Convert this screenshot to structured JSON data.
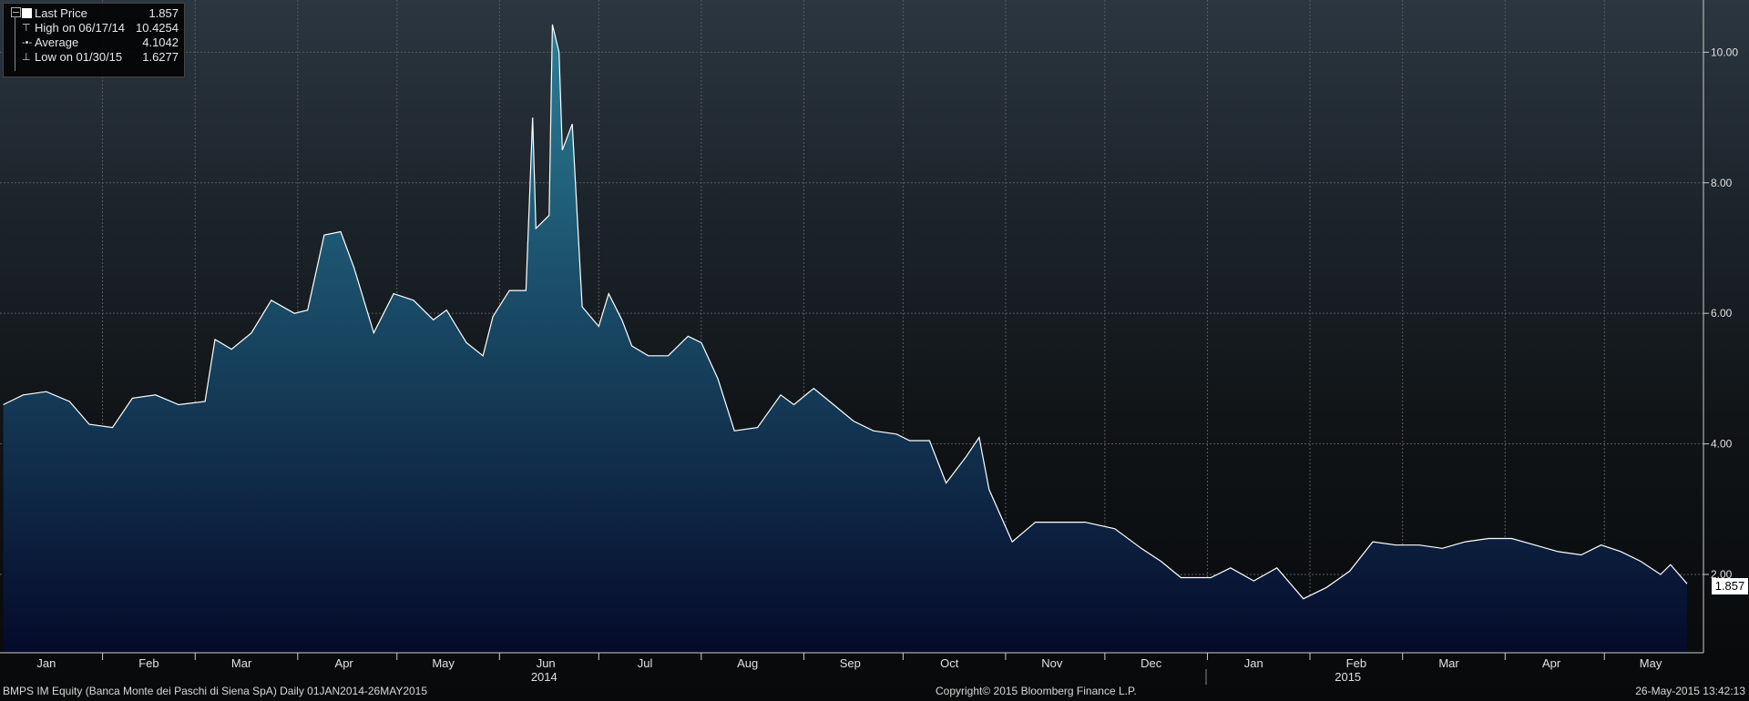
{
  "legend": {
    "last_price_label": "Last Price",
    "last_price_value": "1.857",
    "high_label": "High on 06/17/14",
    "high_value": "10.4254",
    "average_label": "Average",
    "average_value": "4.1042",
    "low_label": "Low on 01/30/15",
    "low_value": "1.6277"
  },
  "last_price_tag": "1.857",
  "footer": {
    "left": "BMPS IM Equity (Banca Monte dei Paschi di Siena SpA)  Daily 01JAN2014-26MAY2015",
    "center": "Copyright© 2015 Bloomberg Finance L.P.",
    "right": "26-May-2015 13:42:13"
  },
  "colors": {
    "line": "#ffffff",
    "fill_top": "#2a7f97",
    "fill_bottom": "#050a2a",
    "grid": "#5a5a5a"
  },
  "chart_data": {
    "type": "area",
    "title": "",
    "xlabel": "",
    "ylabel": "",
    "ylim": [
      0.8,
      10.8
    ],
    "y_ticks": [
      2,
      4,
      6,
      8,
      10
    ],
    "y_tick_labels": [
      "2.00",
      "4.00",
      "6.00",
      "8.00",
      "10.00"
    ],
    "x_range": [
      "2014-01-01",
      "2015-05-26"
    ],
    "x_ticks": [
      {
        "date": "2014-01-15",
        "label": "Jan"
      },
      {
        "date": "2014-02-15",
        "label": "Feb"
      },
      {
        "date": "2014-03-15",
        "label": "Mar"
      },
      {
        "date": "2014-04-15",
        "label": "Apr"
      },
      {
        "date": "2014-05-15",
        "label": "May"
      },
      {
        "date": "2014-06-15",
        "label": "Jun"
      },
      {
        "date": "2014-07-15",
        "label": "Jul"
      },
      {
        "date": "2014-08-15",
        "label": "Aug"
      },
      {
        "date": "2014-09-15",
        "label": "Sep"
      },
      {
        "date": "2014-10-15",
        "label": "Oct"
      },
      {
        "date": "2014-11-15",
        "label": "Nov"
      },
      {
        "date": "2014-12-15",
        "label": "Dec"
      },
      {
        "date": "2015-01-15",
        "label": "Jan"
      },
      {
        "date": "2015-02-15",
        "label": "Feb"
      },
      {
        "date": "2015-03-15",
        "label": "Mar"
      },
      {
        "date": "2015-04-15",
        "label": "Apr"
      },
      {
        "date": "2015-05-15",
        "label": "May"
      }
    ],
    "year_labels": [
      {
        "date": "2014-07-01",
        "label": "2014"
      },
      {
        "date": "2015-03-01",
        "label": "2015"
      }
    ],
    "grid": true,
    "legend_position": "top-left",
    "series": [
      {
        "name": "Last Price",
        "points": [
          [
            "2014-01-02",
            4.6
          ],
          [
            "2014-01-08",
            4.75
          ],
          [
            "2014-01-15",
            4.8
          ],
          [
            "2014-01-22",
            4.65
          ],
          [
            "2014-01-28",
            4.3
          ],
          [
            "2014-02-04",
            4.25
          ],
          [
            "2014-02-10",
            4.7
          ],
          [
            "2014-02-17",
            4.75
          ],
          [
            "2014-02-24",
            4.6
          ],
          [
            "2014-03-04",
            4.65
          ],
          [
            "2014-03-07",
            5.6
          ],
          [
            "2014-03-12",
            5.45
          ],
          [
            "2014-03-18",
            5.7
          ],
          [
            "2014-03-24",
            6.2
          ],
          [
            "2014-03-31",
            6.0
          ],
          [
            "2014-04-04",
            6.05
          ],
          [
            "2014-04-09",
            7.2
          ],
          [
            "2014-04-14",
            7.25
          ],
          [
            "2014-04-18",
            6.7
          ],
          [
            "2014-04-24",
            5.7
          ],
          [
            "2014-04-30",
            6.3
          ],
          [
            "2014-05-06",
            6.2
          ],
          [
            "2014-05-12",
            5.9
          ],
          [
            "2014-05-16",
            6.05
          ],
          [
            "2014-05-22",
            5.55
          ],
          [
            "2014-05-27",
            5.35
          ],
          [
            "2014-05-30",
            5.95
          ],
          [
            "2014-06-04",
            6.35
          ],
          [
            "2014-06-09",
            6.35
          ],
          [
            "2014-06-11",
            9.0
          ],
          [
            "2014-06-12",
            7.3
          ],
          [
            "2014-06-16",
            7.5
          ],
          [
            "2014-06-17",
            10.4254
          ],
          [
            "2014-06-19",
            10.0
          ],
          [
            "2014-06-20",
            8.5
          ],
          [
            "2014-06-23",
            8.9
          ],
          [
            "2014-06-26",
            6.1
          ],
          [
            "2014-07-01",
            5.8
          ],
          [
            "2014-07-04",
            6.3
          ],
          [
            "2014-07-08",
            5.9
          ],
          [
            "2014-07-11",
            5.5
          ],
          [
            "2014-07-16",
            5.35
          ],
          [
            "2014-07-22",
            5.35
          ],
          [
            "2014-07-28",
            5.65
          ],
          [
            "2014-08-01",
            5.55
          ],
          [
            "2014-08-06",
            5.0
          ],
          [
            "2014-08-11",
            4.2
          ],
          [
            "2014-08-18",
            4.25
          ],
          [
            "2014-08-25",
            4.75
          ],
          [
            "2014-08-29",
            4.6
          ],
          [
            "2014-09-04",
            4.85
          ],
          [
            "2014-09-10",
            4.6
          ],
          [
            "2014-09-16",
            4.35
          ],
          [
            "2014-09-22",
            4.2
          ],
          [
            "2014-09-29",
            4.15
          ],
          [
            "2014-10-03",
            4.05
          ],
          [
            "2014-10-09",
            4.05
          ],
          [
            "2014-10-14",
            3.4
          ],
          [
            "2014-10-20",
            3.8
          ],
          [
            "2014-10-24",
            4.1
          ],
          [
            "2014-10-27",
            3.3
          ],
          [
            "2014-11-03",
            2.5
          ],
          [
            "2014-11-10",
            2.8
          ],
          [
            "2014-11-18",
            2.8
          ],
          [
            "2014-11-25",
            2.8
          ],
          [
            "2014-12-04",
            2.7
          ],
          [
            "2014-12-12",
            2.4
          ],
          [
            "2014-12-18",
            2.2
          ],
          [
            "2014-12-24",
            1.95
          ],
          [
            "2015-01-02",
            1.95
          ],
          [
            "2015-01-08",
            2.1
          ],
          [
            "2015-01-15",
            1.9
          ],
          [
            "2015-01-22",
            2.1
          ],
          [
            "2015-01-30",
            1.6277
          ],
          [
            "2015-02-06",
            1.8
          ],
          [
            "2015-02-13",
            2.05
          ],
          [
            "2015-02-20",
            2.5
          ],
          [
            "2015-02-27",
            2.45
          ],
          [
            "2015-03-06",
            2.45
          ],
          [
            "2015-03-13",
            2.4
          ],
          [
            "2015-03-20",
            2.5
          ],
          [
            "2015-03-27",
            2.55
          ],
          [
            "2015-04-03",
            2.55
          ],
          [
            "2015-04-10",
            2.45
          ],
          [
            "2015-04-17",
            2.35
          ],
          [
            "2015-04-24",
            2.3
          ],
          [
            "2015-04-30",
            2.45
          ],
          [
            "2015-05-06",
            2.35
          ],
          [
            "2015-05-12",
            2.2
          ],
          [
            "2015-05-18",
            2.0
          ],
          [
            "2015-05-21",
            2.15
          ],
          [
            "2015-05-26",
            1.857
          ]
        ]
      }
    ]
  }
}
